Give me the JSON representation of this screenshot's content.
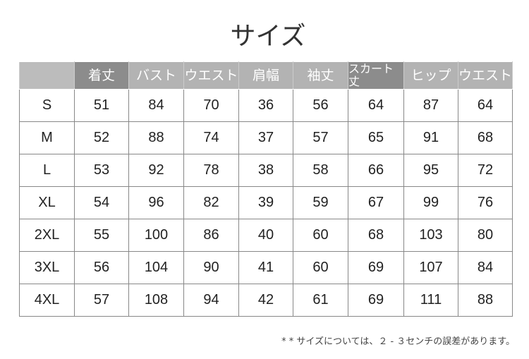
{
  "title": "サイズ",
  "headers": [
    "",
    "着丈",
    "バスト",
    "ウエスト",
    "肩幅",
    "袖丈",
    "スカート丈",
    "ヒップ",
    "ウエスト"
  ],
  "rows": [
    [
      "S",
      "51",
      "84",
      "70",
      "36",
      "56",
      "64",
      "87",
      "64"
    ],
    [
      "M",
      "52",
      "88",
      "74",
      "37",
      "57",
      "65",
      "91",
      "68"
    ],
    [
      "L",
      "53",
      "92",
      "78",
      "38",
      "58",
      "66",
      "95",
      "72"
    ],
    [
      "XL",
      "54",
      "96",
      "82",
      "39",
      "59",
      "67",
      "99",
      "76"
    ],
    [
      "2XL",
      "55",
      "100",
      "86",
      "40",
      "60",
      "68",
      "103",
      "80"
    ],
    [
      "3XL",
      "56",
      "104",
      "90",
      "41",
      "60",
      "69",
      "107",
      "84"
    ],
    [
      "4XL",
      "57",
      "108",
      "94",
      "42",
      "61",
      "69",
      "111",
      "88"
    ]
  ],
  "note": "* * サイズについては、２ - ３センチの誤差があります。"
}
